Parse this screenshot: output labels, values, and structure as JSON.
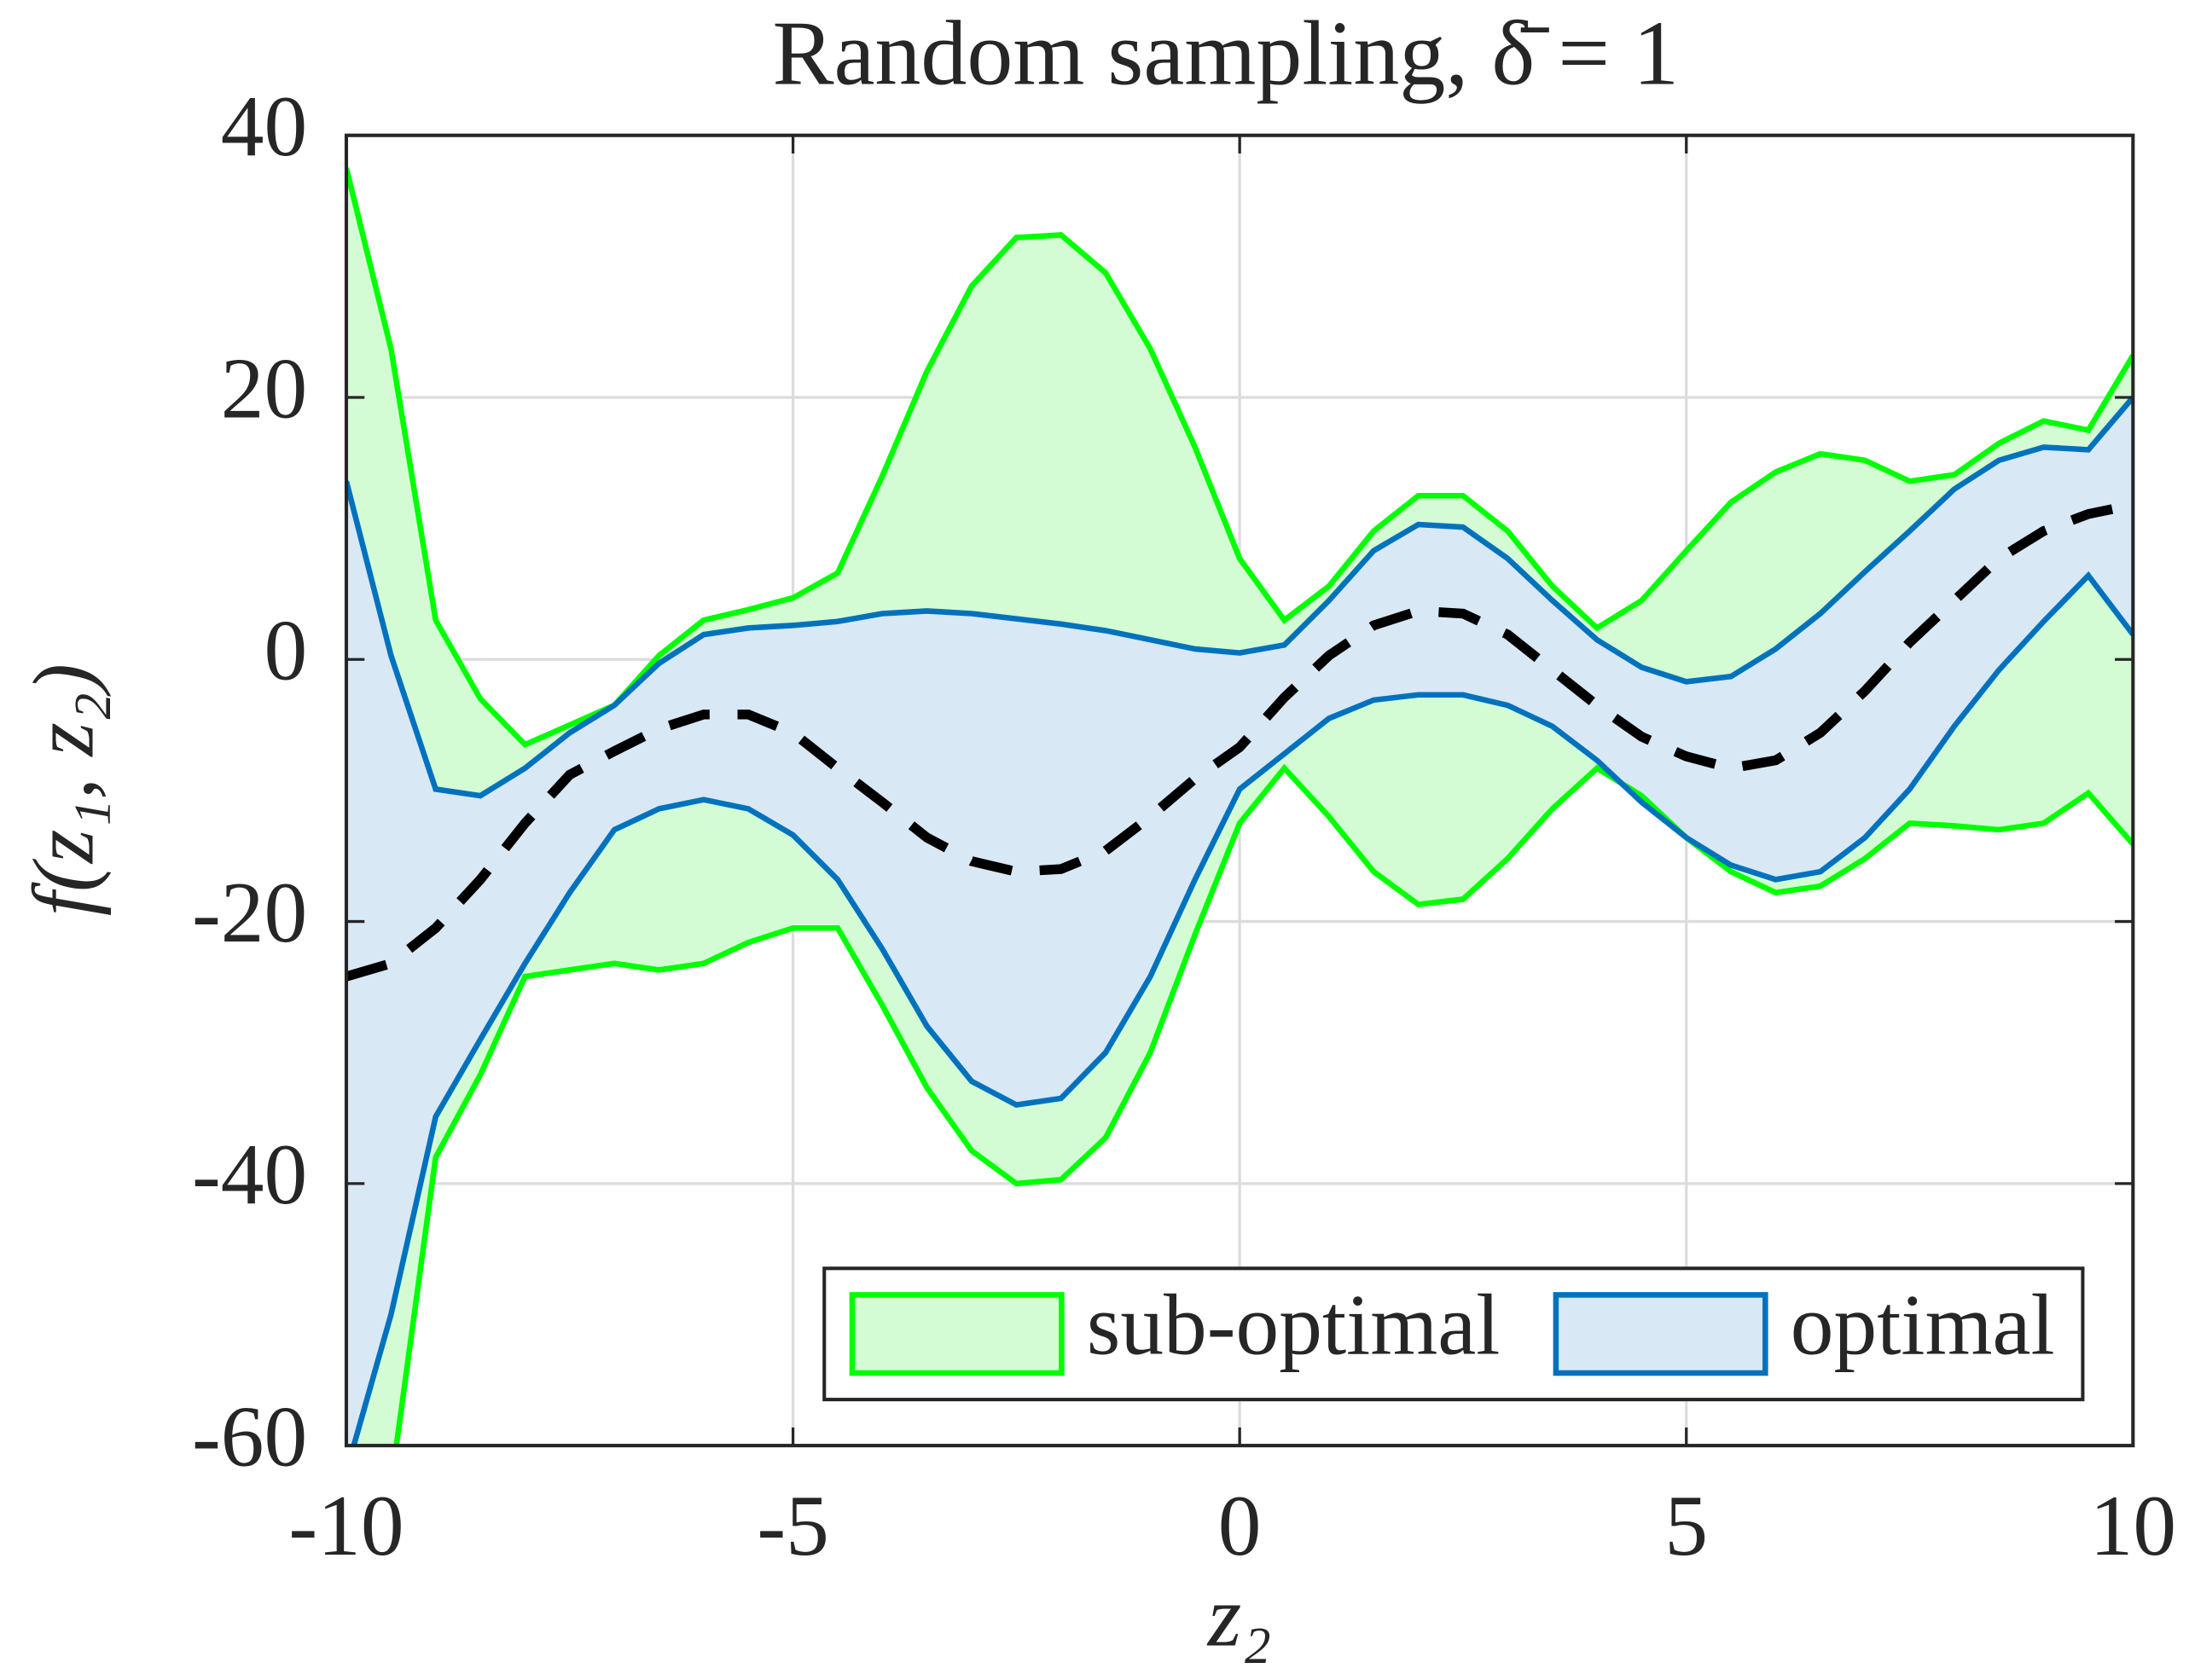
{
  "chart_data": {
    "type": "band",
    "title": "Random sampling, δ̄ = 1",
    "xlabel": "z₂",
    "ylabel": "f(z₁, z₂)",
    "x": [
      -10,
      -9.5,
      -9,
      -8.5,
      -8,
      -7.5,
      -7,
      -6.5,
      -6,
      -5.5,
      -5,
      -4.5,
      -4,
      -3.5,
      -3,
      -2.5,
      -2,
      -1.5,
      -1,
      -0.5,
      0,
      0.5,
      1,
      1.5,
      2,
      2.5,
      3,
      3.5,
      4,
      4.5,
      5,
      5.5,
      6,
      6.5,
      7,
      7.5,
      8,
      8.5,
      9,
      9.5,
      10
    ],
    "xlim": [
      -10,
      10
    ],
    "xticks": [
      -10,
      -5,
      0,
      5,
      10
    ],
    "ylim": [
      -60,
      40
    ],
    "yticks": [
      -60,
      -40,
      -20,
      0,
      20,
      40
    ],
    "grid": true,
    "legend": "southeast",
    "series": [
      {
        "name": "sub-optimal",
        "color": "#00ff00",
        "fill": "#d4fcd4",
        "upper": [
          37.5,
          23.7,
          3,
          -3,
          -6.5,
          -5,
          -3.5,
          0.3,
          3,
          3.8,
          4.7,
          6.6,
          14,
          22,
          28.5,
          32.2,
          32.4,
          29.5,
          23.7,
          16.2,
          7.7,
          3,
          5.6,
          9.8,
          12.5,
          12.5,
          9.8,
          5.6,
          2.4,
          4.5,
          8.3,
          12,
          14.3,
          15.7,
          15.2,
          13.6,
          14.1,
          16.5,
          18.2,
          17.5,
          23.2
        ],
        "lower": [
          -80,
          -63,
          -38,
          -31.7,
          -24.2,
          -23.7,
          -23.2,
          -23.7,
          -23.2,
          -21.6,
          -20.5,
          -20.5,
          -26.4,
          -32.7,
          -37.5,
          -40,
          -39.7,
          -36.5,
          -30,
          -21,
          -12.5,
          -8.3,
          -12,
          -16.2,
          -18.7,
          -18.3,
          -15.2,
          -11.4,
          -8.3,
          -10.4,
          -13.6,
          -16.2,
          -17.8,
          -17.3,
          -15.2,
          -12.5,
          -12.7,
          -13,
          -12.5,
          -10.2,
          -14.1
        ]
      },
      {
        "name": "optimal",
        "color": "#0072bd",
        "fill": "#d9e8f5",
        "upper": [
          13.6,
          0.3,
          -9.9,
          -10.4,
          -8.3,
          -5.6,
          -3.5,
          -0.3,
          1.9,
          2.4,
          2.6,
          2.9,
          3.5,
          3.7,
          3.5,
          3.1,
          2.7,
          2.2,
          1.5,
          0.8,
          0.5,
          1.1,
          4.5,
          8.3,
          10.3,
          10.1,
          7.7,
          4.5,
          1.5,
          -0.6,
          -1.7,
          -1.3,
          0.8,
          3.5,
          6.7,
          9.8,
          13,
          15.2,
          16.2,
          16,
          20
        ],
        "lower": [
          -62,
          -50,
          -34.9,
          -29,
          -23.2,
          -17.8,
          -13,
          -11.4,
          -10.7,
          -11.4,
          -13.4,
          -16.8,
          -22.1,
          -28,
          -32.2,
          -34,
          -33.5,
          -30,
          -24.2,
          -16.8,
          -9.9,
          -7.2,
          -4.5,
          -3.1,
          -2.7,
          -2.7,
          -3.5,
          -5.1,
          -7.7,
          -10.9,
          -13.6,
          -15.7,
          -16.8,
          -16.2,
          -13.6,
          -9.9,
          -5.1,
          -0.8,
          2.9,
          6.4,
          1.9
        ]
      },
      {
        "color": "#000000",
        "dashed": true,
        "values": [
          -24.2,
          -23.2,
          -20.5,
          -16.8,
          -12.5,
          -8.8,
          -7,
          -5.3,
          -4.2,
          -4.2,
          -5.6,
          -8.3,
          -10.9,
          -13.6,
          -15.4,
          -16.2,
          -16,
          -14.6,
          -12,
          -9.1,
          -6.7,
          -2.9,
          0.3,
          2.6,
          3.7,
          3.5,
          1.9,
          -0.8,
          -3.5,
          -5.9,
          -7.4,
          -8.3,
          -7.7,
          -5.6,
          -2.4,
          1.3,
          4.5,
          7.7,
          9.8,
          11.1,
          11.8
        ]
      }
    ]
  }
}
